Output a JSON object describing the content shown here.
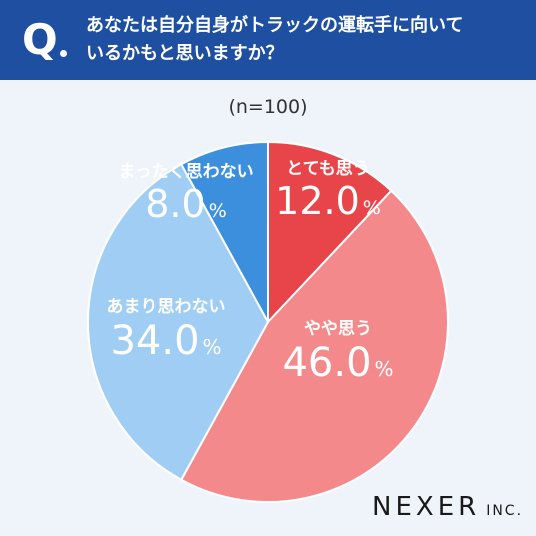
{
  "header": {
    "q_mark": "Q",
    "question_line1": "あなたは自分自身がトラックの運転手に向いて",
    "question_line2": "いるかもと思いますか？"
  },
  "n_label": "(n=100)",
  "logo": {
    "main": "NEXER",
    "sub": "INC."
  },
  "colors": {
    "header_bg": "#1e4fa0",
    "background": "#eef4fa"
  },
  "chart_data": {
    "type": "pie",
    "title": "",
    "start_angle_deg": 0,
    "direction": "clockwise",
    "slices": [
      {
        "label": "とても思う",
        "value": 12.0,
        "value_text": "12.0",
        "unit": "%",
        "color": "#e8454a"
      },
      {
        "label": "やや思う",
        "value": 46.0,
        "value_text": "46.0",
        "unit": "%",
        "color": "#f4898b"
      },
      {
        "label": "あまり思わない",
        "value": 34.0,
        "value_text": "34.0",
        "unit": "%",
        "color": "#9fcdf3"
      },
      {
        "label": "まったく思わない",
        "value": 8.0,
        "value_text": "8.0",
        "unit": "%",
        "color": "#3b8fdc"
      }
    ]
  }
}
